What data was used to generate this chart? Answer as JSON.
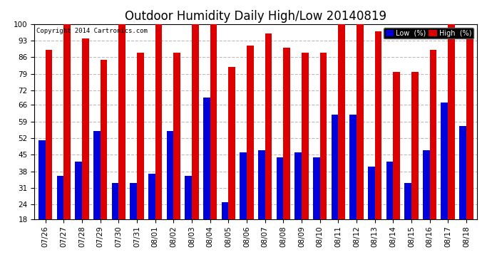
{
  "title": "Outdoor Humidity Daily High/Low 20140819",
  "copyright": "Copyright 2014 Cartronics.com",
  "legend_low": "Low  (%)",
  "legend_high": "High  (%)",
  "dates": [
    "07/26",
    "07/27",
    "07/28",
    "07/29",
    "07/30",
    "07/31",
    "08/01",
    "08/02",
    "08/03",
    "08/04",
    "08/05",
    "08/06",
    "08/07",
    "08/08",
    "08/09",
    "08/10",
    "08/11",
    "08/12",
    "08/13",
    "08/14",
    "08/15",
    "08/16",
    "08/17",
    "08/18"
  ],
  "high_values": [
    89,
    100,
    94,
    85,
    100,
    88,
    100,
    88,
    100,
    100,
    82,
    91,
    96,
    90,
    88,
    88,
    100,
    100,
    97,
    80,
    80,
    89,
    100,
    97
  ],
  "low_values": [
    51,
    36,
    42,
    55,
    33,
    33,
    37,
    55,
    36,
    69,
    25,
    46,
    47,
    44,
    46,
    44,
    62,
    62,
    40,
    42,
    33,
    47,
    67,
    57
  ],
  "ymin": 18,
  "ymax": 100,
  "yticks": [
    18,
    24,
    31,
    38,
    45,
    52,
    59,
    66,
    72,
    79,
    86,
    93,
    100
  ],
  "bar_color_low": "#0000dd",
  "bar_color_high": "#dd0000",
  "bg_color": "#ffffff",
  "grid_color": "#bbbbbb",
  "title_fontsize": 12,
  "tick_fontsize": 7.5,
  "bar_width": 0.38
}
